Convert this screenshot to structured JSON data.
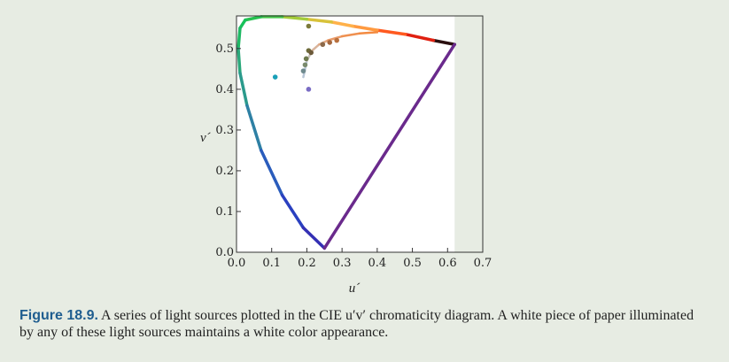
{
  "caption": {
    "label": "Figure 18.9.",
    "text": " A series of light sources plotted in the CIE u′v′ chromaticity diagram. A white piece of paper illuminated by any of these light sources maintains a white color appearance."
  },
  "chart_data": {
    "type": "scatter",
    "title": "",
    "xlabel": "u´",
    "ylabel": "v´",
    "xlim": [
      0.0,
      0.7
    ],
    "ylim": [
      0.0,
      0.58
    ],
    "xticks": [
      "0.0",
      "0.1",
      "0.2",
      "0.3",
      "0.4",
      "0.5",
      "0.6",
      "0.7"
    ],
    "yticks": [
      "0.0",
      "0.1",
      "0.2",
      "0.3",
      "0.4",
      "0.5"
    ],
    "grid": false,
    "background_region": {
      "x": [
        0.0,
        0.62
      ],
      "y": [
        0.0,
        0.58
      ],
      "color": "#ffffff"
    },
    "spectral_locus": {
      "name": "spectrum locus",
      "points": [
        [
          0.62,
          0.51
        ],
        [
          0.56,
          0.52
        ],
        [
          0.48,
          0.535
        ],
        [
          0.4,
          0.545
        ],
        [
          0.33,
          0.555
        ],
        [
          0.27,
          0.565
        ],
        [
          0.2,
          0.572
        ],
        [
          0.13,
          0.578
        ],
        [
          0.07,
          0.578
        ],
        [
          0.025,
          0.57
        ],
        [
          0.01,
          0.55
        ],
        [
          0.005,
          0.5
        ],
        [
          0.01,
          0.44
        ],
        [
          0.03,
          0.36
        ],
        [
          0.07,
          0.25
        ],
        [
          0.13,
          0.14
        ],
        [
          0.19,
          0.06
        ],
        [
          0.25,
          0.01
        ]
      ],
      "colors": [
        "#2a0f0f",
        "#e02010",
        "#ff5a20",
        "#ff9a40",
        "#ffb14a",
        "#d8c23a",
        "#a4cc3a",
        "#45c84a",
        "#26c250",
        "#18c25a",
        "#1fb864",
        "#2aa87a",
        "#2b9a8c",
        "#2e80a4",
        "#2a5cbc",
        "#2a40c0",
        "#3430b4",
        "#4020a0"
      ]
    },
    "purple_line": {
      "name": "line of purples",
      "from": [
        0.25,
        0.01
      ],
      "to": [
        0.62,
        0.51
      ],
      "color": "#6a2a8c"
    },
    "planckian_locus": {
      "name": "blackbody locus",
      "points": [
        [
          0.19,
          0.43
        ],
        [
          0.2,
          0.47
        ],
        [
          0.215,
          0.495
        ],
        [
          0.235,
          0.51
        ],
        [
          0.26,
          0.52
        ],
        [
          0.3,
          0.53
        ],
        [
          0.35,
          0.537
        ],
        [
          0.4,
          0.54
        ]
      ],
      "colors": [
        "#b8c6d6",
        "#c8c2b8",
        "#d8b49c",
        "#e2a882",
        "#e99a68",
        "#ef9050",
        "#f38a40",
        "#f58a38"
      ]
    },
    "series": [
      {
        "name": "",
        "points": [
          {
            "x": 0.11,
            "y": 0.43,
            "color": "#1aa0b8"
          },
          {
            "x": 0.205,
            "y": 0.4,
            "color": "#7a6cc4"
          },
          {
            "x": 0.205,
            "y": 0.555,
            "color": "#7c7a3a"
          },
          {
            "x": 0.205,
            "y": 0.495,
            "color": "#6d6a3a"
          },
          {
            "x": 0.19,
            "y": 0.445,
            "color": "#6f8a8e"
          },
          {
            "x": 0.195,
            "y": 0.46,
            "color": "#7a8a6c"
          },
          {
            "x": 0.198,
            "y": 0.475,
            "color": "#6e7a4e"
          },
          {
            "x": 0.212,
            "y": 0.49,
            "color": "#6c5a3a"
          },
          {
            "x": 0.245,
            "y": 0.51,
            "color": "#8c6a4a"
          },
          {
            "x": 0.265,
            "y": 0.515,
            "color": "#a6683e"
          },
          {
            "x": 0.285,
            "y": 0.52,
            "color": "#b8703e"
          }
        ]
      }
    ]
  }
}
